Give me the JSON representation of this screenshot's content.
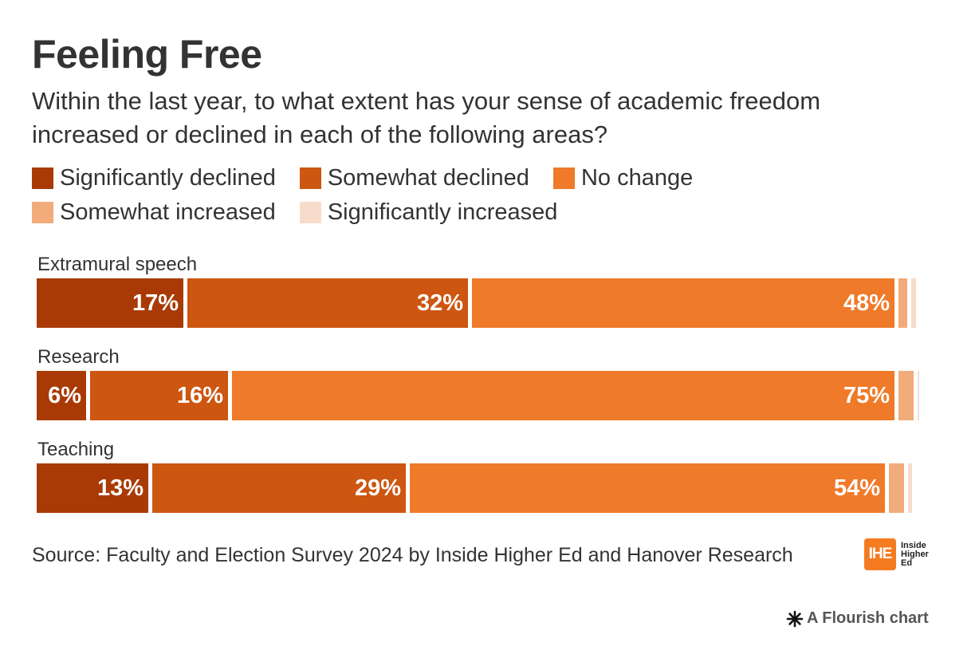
{
  "header": {
    "title": "Feeling Free",
    "subtitle": "Within the last year, to what extent has your sense of academic freedom increased or declined in each of the following areas?"
  },
  "legend": {
    "rows": [
      [
        {
          "label": "Significantly declined",
          "color": "#a93a05"
        },
        {
          "label": "Somewhat declined",
          "color": "#cd5611"
        },
        {
          "label": "No change",
          "color": "#ef7a29"
        }
      ],
      [
        {
          "label": "Somewhat increased",
          "color": "#f2ab7a"
        },
        {
          "label": "Significantly increased",
          "color": "#f7dccb"
        }
      ]
    ]
  },
  "chart_data": {
    "type": "bar",
    "orientation": "horizontal",
    "stacked": true,
    "categories": [
      "Extramural speech",
      "Research",
      "Teaching"
    ],
    "series": [
      {
        "name": "Significantly declined",
        "color": "#a93a05",
        "values": [
          17,
          6,
          13
        ],
        "labels": [
          "17%",
          "6%",
          "13%"
        ]
      },
      {
        "name": "Somewhat declined",
        "color": "#cd5611",
        "values": [
          32,
          16,
          29
        ],
        "labels": [
          "32%",
          "16%",
          "29%"
        ]
      },
      {
        "name": "No change",
        "color": "#ef7a29",
        "values": [
          48,
          75,
          54
        ],
        "labels": [
          "48%",
          "75%",
          "54%"
        ]
      },
      {
        "name": "Somewhat increased",
        "color": "#f2ab7a",
        "values": [
          1.5,
          2.2,
          2.1
        ],
        "labels": [
          "",
          "",
          ""
        ]
      },
      {
        "name": "Significantly increased",
        "color": "#f7dccb",
        "values": [
          0.5,
          0.2,
          0.5
        ],
        "labels": [
          "",
          "",
          ""
        ]
      }
    ],
    "xlim": [
      0,
      100
    ],
    "grid": false,
    "legend_position": "top-left",
    "value_labels": "inside-end"
  },
  "footer": {
    "source": "Source: Faculty and Election Survey 2024 by Inside Higher Ed and Hanover Research",
    "logo_mark": "IHE",
    "logo_lines": [
      "Inside",
      "Higher",
      "Ed"
    ],
    "flourish_credit": "A Flourish chart"
  }
}
